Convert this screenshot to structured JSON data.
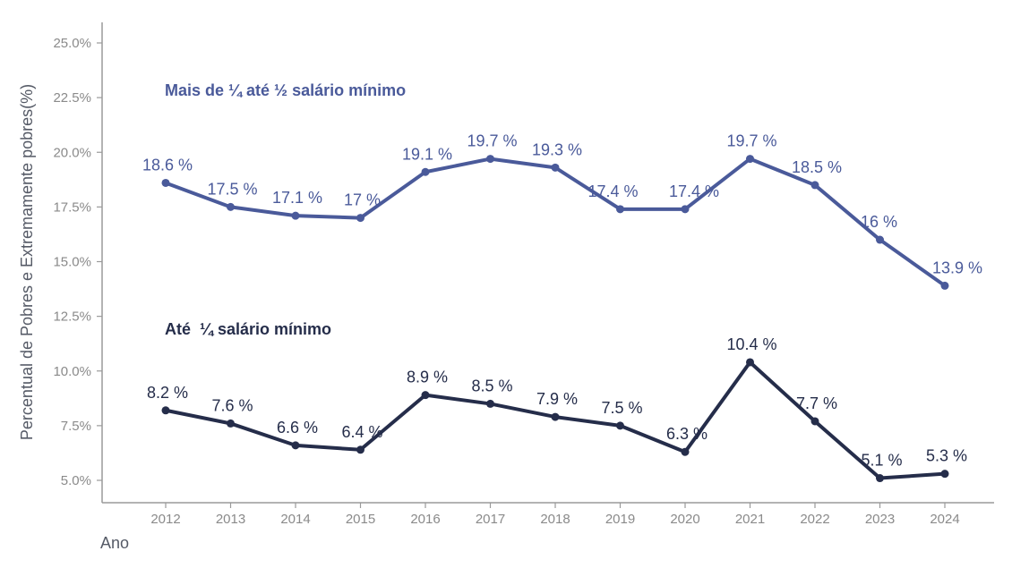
{
  "chart_data": {
    "type": "line",
    "title": "",
    "xlabel": "Ano",
    "ylabel": "Percentual de Pobres e Extremamente pobres(%)",
    "x": [
      "2012",
      "2013",
      "2014",
      "2015",
      "2016",
      "2017",
      "2018",
      "2019",
      "2020",
      "2021",
      "2022",
      "2023",
      "2024"
    ],
    "ylim": [
      5.0,
      25.0
    ],
    "yticks": [
      5.0,
      7.5,
      10.0,
      12.5,
      15.0,
      17.5,
      20.0,
      22.5,
      25.0
    ],
    "ytick_labels": [
      "5.0%",
      "7.5%",
      "10.0%",
      "12.5%",
      "15.0%",
      "17.5%",
      "20.0%",
      "22.5%",
      "25.0%"
    ],
    "grid": false,
    "legend": "inline-annotations",
    "series": [
      {
        "name": "Mais de ¼ até ½ salário mínimo",
        "color": "#4a5a9a",
        "values": [
          18.6,
          17.5,
          17.1,
          17.0,
          19.1,
          19.7,
          19.3,
          17.4,
          17.4,
          19.7,
          18.5,
          16.0,
          13.9
        ],
        "labels": [
          "18.6 %",
          "17.5 %",
          "17.1 %",
          "17 %",
          "19.1 %",
          "19.7 %",
          "19.3 %",
          "17.4 %",
          "17.4 %",
          "19.7 %",
          "18.5 %",
          "16 %",
          "13.9 %"
        ]
      },
      {
        "name": "Até  ¼ salário mínimo",
        "color": "#252d4a",
        "values": [
          8.2,
          7.6,
          6.6,
          6.4,
          8.9,
          8.5,
          7.9,
          7.5,
          6.3,
          10.4,
          7.7,
          5.1,
          5.3
        ],
        "labels": [
          "8.2 %",
          "7.6 %",
          "6.6 %",
          "6.4 %",
          "8.9 %",
          "8.5 %",
          "7.9 %",
          "7.5 %",
          "6.3 %",
          "10.4 %",
          "7.7 %",
          "5.1 %",
          "5.3 %"
        ]
      }
    ]
  },
  "colors": {
    "axis": "#9a9a9a",
    "tick_text": "#8a8a8a",
    "axis_title": "#555a66"
  }
}
